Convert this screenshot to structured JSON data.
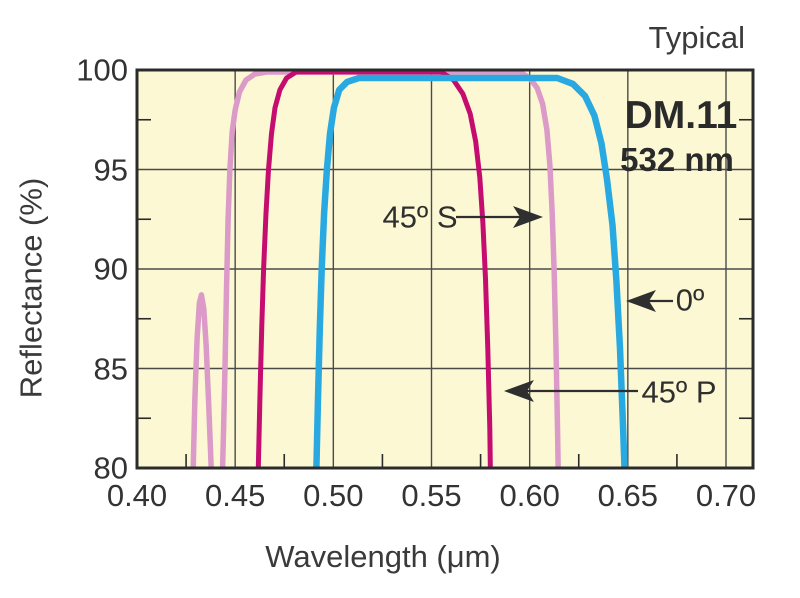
{
  "header": {
    "typical": "Typical"
  },
  "product": {
    "model": "DM.11",
    "center_wavelength": "532 nm"
  },
  "annotations": [
    {
      "label": "45º S"
    },
    {
      "label": "0º"
    },
    {
      "label": "45º P"
    }
  ],
  "chart_data": {
    "type": "line",
    "title": "Typical",
    "xlabel": "Wavelength (μm)",
    "ylabel": "Reflectance (%)",
    "xlim": [
      0.4,
      0.714
    ],
    "ylim": [
      80,
      100
    ],
    "grid": true,
    "legend_position": "none",
    "plot_bg": "#FCF8D4",
    "grid_color": "#4a4a4a",
    "border_color": "#2b2b2b",
    "x_ticks": [
      0.4,
      0.45,
      0.5,
      0.55,
      0.6,
      0.65,
      0.7
    ],
    "x_tick_labels": [
      "0.40",
      "0.45",
      "0.50",
      "0.55",
      "0.60",
      "0.65",
      "0.70"
    ],
    "x_minor_ticks": [
      0.425,
      0.475,
      0.525,
      0.575,
      0.625,
      0.675
    ],
    "y_ticks": [
      100,
      95,
      90,
      85,
      80
    ],
    "y_tick_labels": [
      "100",
      "95",
      "90",
      "85",
      "80"
    ],
    "y_minor_ticks": [
      97.5,
      92.5,
      87.5,
      82.5
    ],
    "series": [
      {
        "name": "45º S",
        "color": "#DB9AC7",
        "stroke_width": 5.5,
        "points": [
          [
            0.4278,
            76
          ],
          [
            0.4286,
            80
          ],
          [
            0.4295,
            83.5
          ],
          [
            0.4306,
            86.5
          ],
          [
            0.4318,
            88.3
          ],
          [
            0.4328,
            88.7
          ],
          [
            0.434,
            88.0
          ],
          [
            0.4352,
            86.2
          ],
          [
            0.4365,
            83.2
          ],
          [
            0.438,
            79.5
          ],
          [
            0.4395,
            75.5
          ],
          [
            0.4408,
            73.5
          ],
          [
            0.442,
            75
          ],
          [
            0.4432,
            78.5
          ],
          [
            0.4441,
            82
          ],
          [
            0.4449,
            85.5
          ],
          [
            0.4456,
            89
          ],
          [
            0.4464,
            92.5
          ],
          [
            0.4473,
            95
          ],
          [
            0.4485,
            96.9
          ],
          [
            0.45,
            98.0
          ],
          [
            0.4522,
            98.9
          ],
          [
            0.4555,
            99.5
          ],
          [
            0.46,
            99.8
          ],
          [
            0.466,
            99.9
          ],
          [
            0.595,
            99.9
          ],
          [
            0.6,
            99.6
          ],
          [
            0.6038,
            99.1
          ],
          [
            0.6066,
            98.3
          ],
          [
            0.6088,
            97.0
          ],
          [
            0.6103,
            95.2
          ],
          [
            0.6115,
            92.8
          ],
          [
            0.6125,
            89.8
          ],
          [
            0.6134,
            86
          ],
          [
            0.6143,
            81.5
          ],
          [
            0.6151,
            76
          ]
        ]
      },
      {
        "name": "45º P",
        "color": "#C50D70",
        "stroke_width": 5,
        "points": [
          [
            0.461,
            76
          ],
          [
            0.4618,
            80
          ],
          [
            0.4626,
            83.5
          ],
          [
            0.4635,
            87
          ],
          [
            0.4645,
            90
          ],
          [
            0.4657,
            92.8
          ],
          [
            0.467,
            95
          ],
          [
            0.4685,
            96.8
          ],
          [
            0.4703,
            98.1
          ],
          [
            0.4728,
            99.0
          ],
          [
            0.4762,
            99.6
          ],
          [
            0.481,
            99.9
          ],
          [
            0.555,
            99.9
          ],
          [
            0.5612,
            99.5
          ],
          [
            0.566,
            98.8
          ],
          [
            0.5697,
            97.8
          ],
          [
            0.5725,
            96.4
          ],
          [
            0.5746,
            94.6
          ],
          [
            0.5762,
            92.3
          ],
          [
            0.5775,
            89.5
          ],
          [
            0.5787,
            86
          ],
          [
            0.5797,
            82
          ],
          [
            0.5805,
            76
          ]
        ]
      },
      {
        "name": "0º",
        "color": "#29A9E1",
        "stroke_width": 6.5,
        "points": [
          [
            0.4906,
            76
          ],
          [
            0.4914,
            80
          ],
          [
            0.4922,
            83.5
          ],
          [
            0.4931,
            87
          ],
          [
            0.4941,
            90
          ],
          [
            0.4953,
            92.8
          ],
          [
            0.4967,
            95
          ],
          [
            0.4983,
            96.8
          ],
          [
            0.5003,
            98.1
          ],
          [
            0.503,
            99.0
          ],
          [
            0.507,
            99.4
          ],
          [
            0.513,
            99.6
          ],
          [
            0.614,
            99.6
          ],
          [
            0.622,
            99.3
          ],
          [
            0.6282,
            98.7
          ],
          [
            0.633,
            97.7
          ],
          [
            0.6366,
            96.3
          ],
          [
            0.6394,
            94.5
          ],
          [
            0.6422,
            92.2
          ],
          [
            0.6442,
            89.4
          ],
          [
            0.646,
            86
          ],
          [
            0.6476,
            82
          ],
          [
            0.649,
            78
          ],
          [
            0.65,
            74
          ]
        ]
      }
    ]
  }
}
